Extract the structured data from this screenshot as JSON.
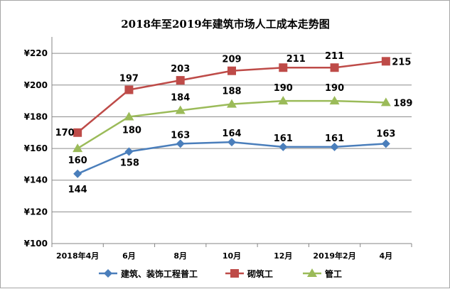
{
  "chart_data": {
    "type": "line",
    "title": "2018年至2019年建筑市场人工成本走势图",
    "categories": [
      "2018年4月",
      "6月",
      "8月",
      "10月",
      "12月",
      "2019年2月",
      "4月"
    ],
    "y_tick_labels": [
      "¥100",
      "¥120",
      "¥140",
      "¥160",
      "¥180",
      "¥200",
      "¥220"
    ],
    "ylim": [
      100,
      225
    ],
    "grid": true,
    "legend_position": "bottom",
    "series": [
      {
        "name": "建筑、装饰工程普工",
        "color": "#4a7ebb",
        "marker": "diamond",
        "values": [
          144,
          158,
          163,
          164,
          161,
          161,
          163
        ]
      },
      {
        "name": "砌筑工",
        "color": "#be4b48",
        "marker": "square",
        "values": [
          170,
          197,
          203,
          209,
          211,
          211,
          215
        ]
      },
      {
        "name": "管工",
        "color": "#9bbb59",
        "marker": "triangle",
        "values": [
          160,
          180,
          184,
          188,
          190,
          190,
          189
        ]
      }
    ]
  }
}
